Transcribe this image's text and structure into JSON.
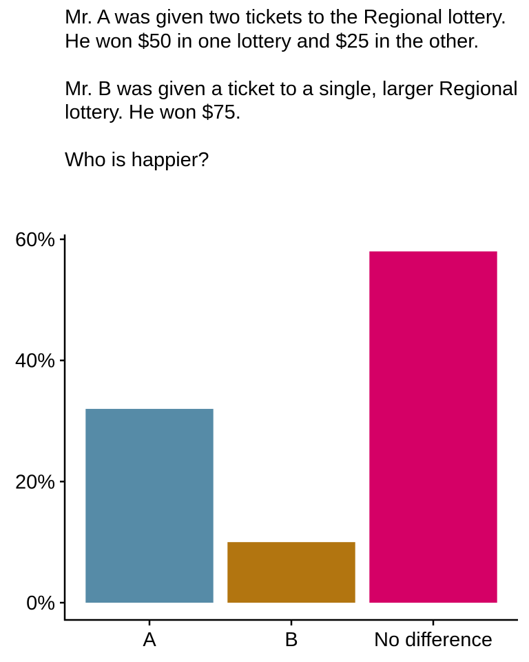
{
  "chart_data": {
    "type": "bar",
    "title": "Mr. A was given two tickets to the Regional lottery. He won $50 in one lottery and $25 in the other.\n\nMr. B was given a ticket to a single, larger Regional lottery. He won $75.\n\nWho is happier?",
    "categories": [
      "A",
      "B",
      "No difference"
    ],
    "values": [
      32,
      10,
      58
    ],
    "colors": [
      "#568BA7",
      "#B27510",
      "#D50066"
    ],
    "xlabel": "",
    "ylabel": "",
    "ylim": [
      0,
      60
    ],
    "yticks": [
      0,
      20,
      40,
      60
    ],
    "ytick_labels": [
      "0%",
      "20%",
      "40%",
      "60%"
    ],
    "grid": false,
    "legend": "none"
  }
}
